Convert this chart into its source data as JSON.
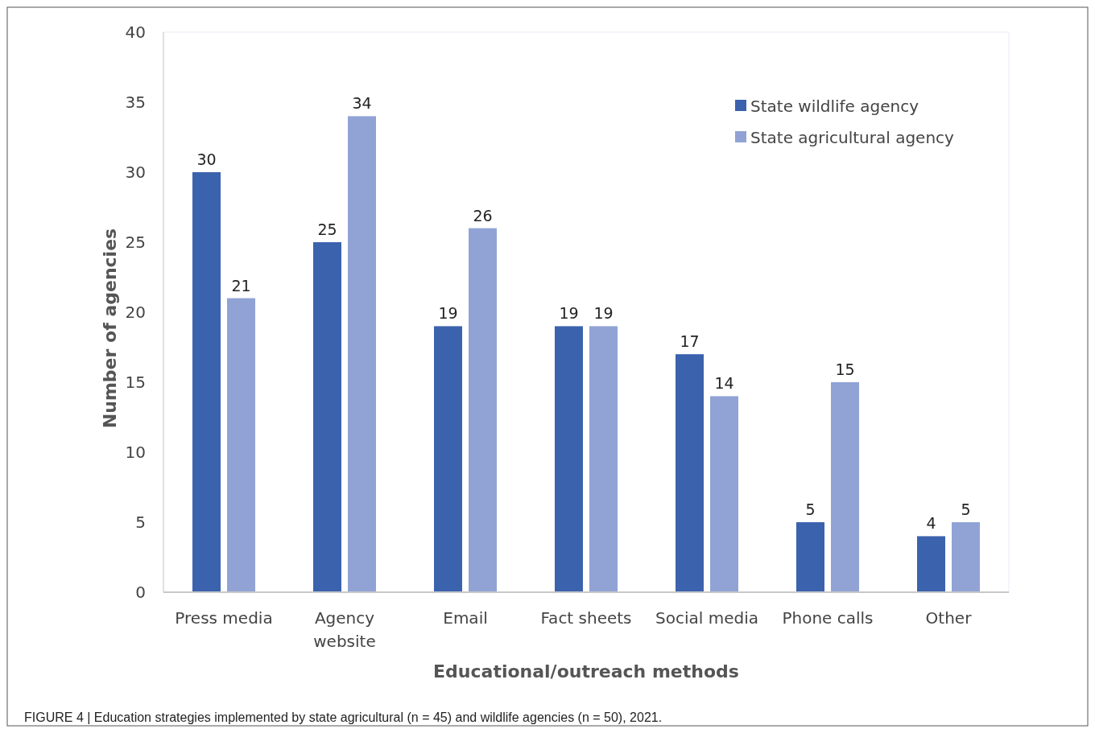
{
  "chart_data": {
    "type": "bar",
    "xlabel": "Educational/outreach methods",
    "ylabel": "Number of agencies",
    "categories": [
      "Press media",
      "Agency website",
      "Email",
      "Fact sheets",
      "Social media",
      "Phone calls",
      "Other"
    ],
    "series": [
      {
        "name": "State wildlife agency",
        "color": "#3b62ad",
        "values": [
          30,
          25,
          19,
          19,
          17,
          5,
          4
        ]
      },
      {
        "name": "State agricultural agency",
        "color": "#91a3d5",
        "values": [
          21,
          34,
          26,
          19,
          14,
          15,
          5
        ]
      }
    ],
    "ylim": [
      0,
      40
    ],
    "yticks": [
      0,
      5,
      10,
      15,
      20,
      25,
      30,
      35,
      40
    ],
    "grid": false,
    "legend": "top right",
    "data_labels": true,
    "annotations": [
      "FIGURE 4 | Education strategies implemented by state agricultural (n = 45) and wildlife agencies (n = 50), 2021."
    ]
  }
}
